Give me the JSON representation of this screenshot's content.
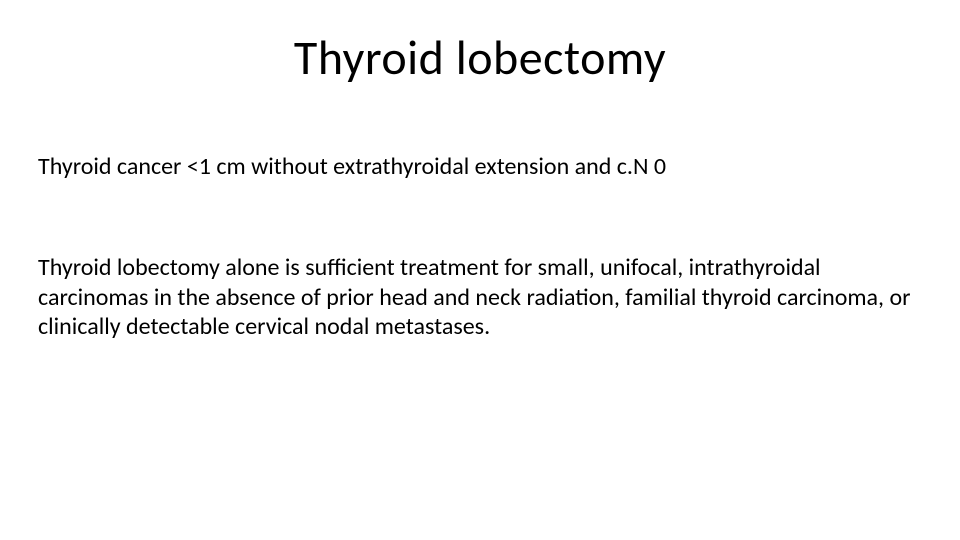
{
  "slide": {
    "title": "Thyroid lobectomy",
    "paragraph1": "Thyroid cancer <1 cm without extrathyroidal extension and c.N 0",
    "paragraph2": "Thyroid lobectomy alone is sufficient treatment for small, unifocal, intrathyroidal carcinomas in the absence of prior head and neck radiation, familial thyroid carcinoma, or  clinically detectable cervical nodal metastases."
  },
  "style": {
    "background_color": "#ffffff",
    "text_color": "#000000",
    "title_fontsize": 48,
    "body_fontsize": 24,
    "font_family": "Calibri"
  }
}
